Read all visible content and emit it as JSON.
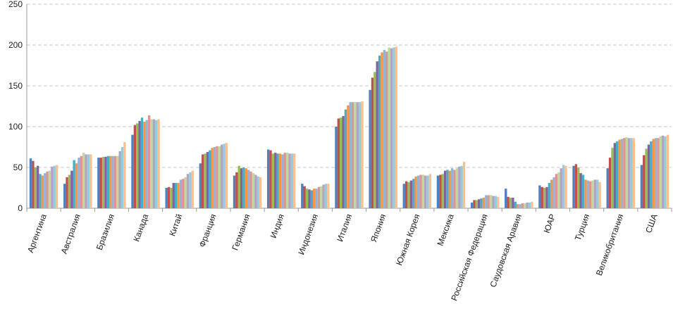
{
  "chart_data": {
    "type": "bar",
    "categories": [
      "Аргентина",
      "Австралия",
      "Бразилия",
      "Канада",
      "Китай",
      "Франция",
      "Германия",
      "Индия",
      "Индонезия",
      "Италия",
      "Япония",
      "Южная Корея",
      "Мексика",
      "Российская Федерация",
      "Саудовская Аравия",
      "ЮАР",
      "Турция",
      "Великобритания",
      "США"
    ],
    "series": [
      {
        "color": "#4F81BD",
        "values": [
          61,
          30,
          62,
          90,
          25,
          55,
          40,
          72,
          30,
          100,
          145,
          30,
          40,
          7,
          24,
          28,
          52,
          49,
          53
        ]
      },
      {
        "color": "#C0504D",
        "values": [
          58,
          38,
          62,
          102,
          26,
          66,
          44,
          71,
          27,
          110,
          160,
          33,
          41,
          10,
          14,
          26,
          54,
          62,
          65
        ]
      },
      {
        "color": "#9BBB59",
        "values": [
          50,
          41,
          63,
          104,
          25,
          67,
          52,
          67,
          24,
          111,
          167,
          32,
          42,
          10,
          13,
          25,
          50,
          74,
          73
        ]
      },
      {
        "color": "#8064A2",
        "values": [
          52,
          46,
          63,
          107,
          31,
          69,
          49,
          68,
          23,
          113,
          180,
          34,
          46,
          11,
          13,
          26,
          43,
          80,
          78
        ]
      },
      {
        "color": "#4BACC6",
        "values": [
          42,
          59,
          64,
          111,
          31,
          71,
          50,
          67,
          22,
          121,
          187,
          36,
          47,
          12,
          8,
          31,
          41,
          82,
          82
        ]
      },
      {
        "color": "#F79646",
        "values": [
          40,
          55,
          64,
          106,
          31,
          74,
          49,
          67,
          24,
          126,
          191,
          39,
          46,
          13,
          5,
          35,
          35,
          84,
          85
        ]
      },
      {
        "color": "#95B3D7",
        "values": [
          43,
          62,
          64,
          108,
          35,
          75,
          47,
          66,
          24,
          130,
          194,
          40,
          49,
          16,
          5,
          38,
          34,
          85,
          86
        ]
      },
      {
        "color": "#D99694",
        "values": [
          45,
          64,
          64,
          114,
          36,
          76,
          45,
          68,
          26,
          130,
          192,
          41,
          47,
          16,
          6,
          42,
          33,
          86,
          86
        ]
      },
      {
        "color": "#C3D69B",
        "values": [
          46,
          68,
          64,
          109,
          38,
          76,
          43,
          68,
          27,
          130,
          197,
          41,
          49,
          16,
          6,
          44,
          34,
          87,
          88
        ]
      },
      {
        "color": "#B3A2C7",
        "values": [
          51,
          66,
          70,
          109,
          42,
          78,
          41,
          67,
          29,
          130,
          196,
          40,
          51,
          15,
          7,
          49,
          35,
          86,
          89
        ]
      },
      {
        "color": "#93CDDD",
        "values": [
          52,
          66,
          75,
          108,
          44,
          79,
          39,
          67,
          30,
          130,
          197,
          40,
          52,
          15,
          7,
          53,
          35,
          86,
          88
        ]
      },
      {
        "color": "#FAC090",
        "values": [
          53,
          66,
          81,
          109,
          46,
          80,
          38,
          67,
          30,
          131,
          198,
          42,
          57,
          14,
          8,
          52,
          32,
          86,
          90
        ]
      }
    ],
    "ylim": [
      0,
      250
    ],
    "yticks": [
      0,
      50,
      100,
      150,
      200,
      250
    ],
    "grid": true
  }
}
